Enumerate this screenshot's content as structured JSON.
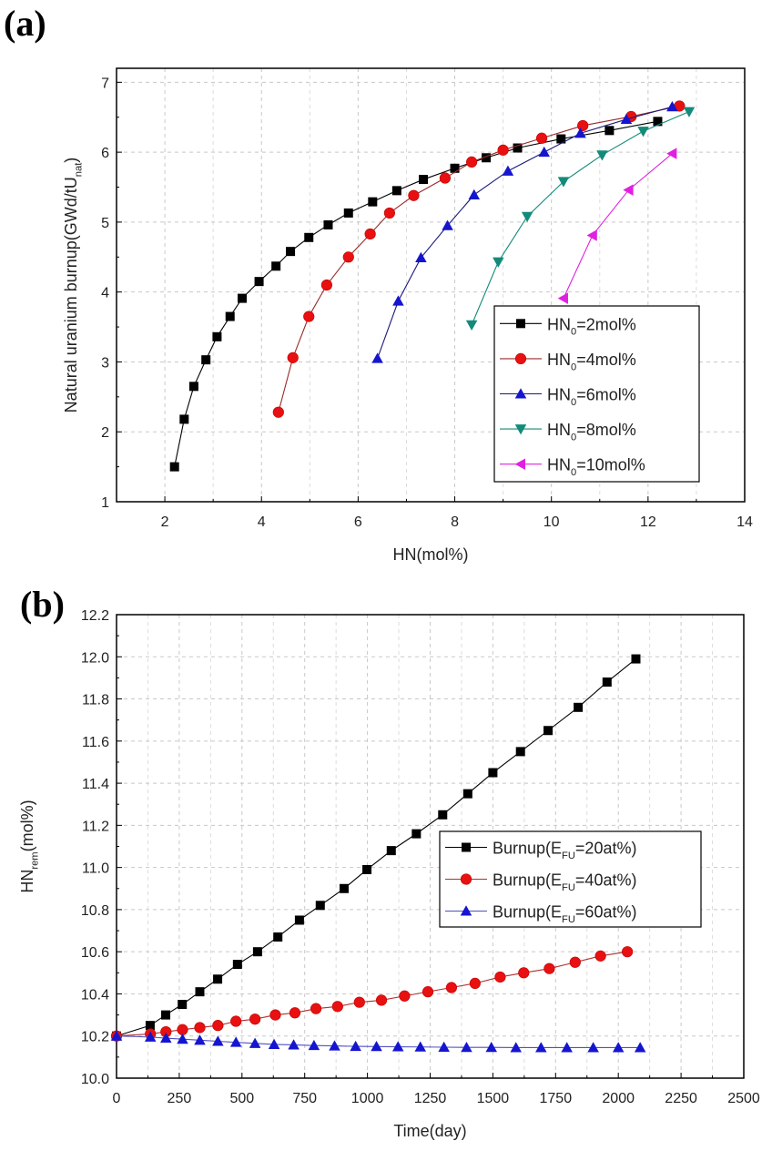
{
  "chart_data": [
    {
      "panel_label": "(a)",
      "type": "line",
      "xlabel": "HN(mol%)",
      "ylabel": "Natural uranium burnup(GWd/tU",
      "ylabel_sub": "nat",
      "ylabel_end": ")",
      "xlim": [
        1,
        14
      ],
      "ylim": [
        1,
        7.2
      ],
      "xticks": [
        2,
        4,
        6,
        8,
        10,
        12,
        14
      ],
      "yticks": [
        1,
        2,
        3,
        4,
        5,
        6,
        7
      ],
      "grid": true,
      "legend_position": "center-right",
      "series": [
        {
          "name_pre": "HN",
          "name_sub": "0",
          "name_post": "=2mol%",
          "marker": "square",
          "color": "#000000",
          "line_color": "#000000",
          "x": [
            2.2,
            2.4,
            2.6,
            2.85,
            3.08,
            3.35,
            3.6,
            3.95,
            4.3,
            4.6,
            4.98,
            5.38,
            5.8,
            6.3,
            6.8,
            7.35,
            8.0,
            8.65,
            9.3,
            10.2,
            11.2,
            12.2
          ],
          "y": [
            1.5,
            2.18,
            2.65,
            3.03,
            3.36,
            3.65,
            3.91,
            4.15,
            4.37,
            4.58,
            4.78,
            4.96,
            5.13,
            5.29,
            5.45,
            5.61,
            5.77,
            5.92,
            6.06,
            6.19,
            6.31,
            6.44
          ]
        },
        {
          "name_pre": "HN",
          "name_sub": "0",
          "name_post": "=4mol%",
          "marker": "circle",
          "color": "#e81010",
          "line_color": "#9a2a2a",
          "x": [
            4.35,
            4.65,
            4.98,
            5.35,
            5.8,
            6.25,
            6.65,
            7.15,
            7.8,
            8.35,
            9.0,
            9.8,
            10.65,
            11.65,
            12.65
          ],
          "y": [
            2.28,
            3.06,
            3.65,
            4.1,
            4.5,
            4.83,
            5.13,
            5.38,
            5.63,
            5.86,
            6.03,
            6.2,
            6.38,
            6.51,
            6.66
          ]
        },
        {
          "name_pre": "HN",
          "name_sub": "0",
          "name_post": "=6mol%",
          "marker": "triangle-up",
          "color": "#1515d0",
          "line_color": "#1a1a7a",
          "x": [
            6.4,
            6.83,
            7.3,
            7.85,
            8.4,
            9.1,
            9.85,
            10.6,
            11.55,
            12.5
          ],
          "y": [
            3.05,
            3.87,
            4.49,
            4.95,
            5.39,
            5.73,
            6.0,
            6.27,
            6.47,
            6.65
          ]
        },
        {
          "name_pre": "HN",
          "name_sub": "0",
          "name_post": "=8mol%",
          "marker": "triangle-down",
          "color": "#138a7a",
          "line_color": "#138a7a",
          "x": [
            8.35,
            8.9,
            9.5,
            10.25,
            11.05,
            11.9,
            12.85
          ],
          "y": [
            3.53,
            4.43,
            5.08,
            5.58,
            5.96,
            6.3,
            6.58
          ]
        },
        {
          "name_pre": "HN",
          "name_sub": "0",
          "name_post": "=10mol%",
          "marker": "triangle-left",
          "color": "#e020e0",
          "line_color": "#e020e0",
          "x": [
            10.25,
            10.85,
            11.6,
            12.5
          ],
          "y": [
            3.91,
            4.81,
            5.46,
            5.98
          ]
        }
      ]
    },
    {
      "panel_label": "(b)",
      "type": "line",
      "xlabel": "Time(day)",
      "ylabel": "HN",
      "ylabel_sub": "rem",
      "ylabel_end": "(mol%)",
      "xlim": [
        0,
        2500
      ],
      "ylim": [
        10.0,
        12.2
      ],
      "xticks": [
        0,
        250,
        500,
        750,
        1000,
        1250,
        1500,
        1750,
        2000,
        2250,
        2500
      ],
      "yticks": [
        "10.0",
        "10.2",
        "10.4",
        "10.6",
        "10.8",
        "11.0",
        "11.2",
        "11.4",
        "11.6",
        "11.8",
        "12.0",
        "12.2"
      ],
      "grid": true,
      "legend_position": "center-right",
      "series": [
        {
          "name_pre": "Burnup(E",
          "name_sub": "FU",
          "name_post": "=20at%)",
          "marker": "square",
          "color": "#000000",
          "line_color": "#000000",
          "x": [
            0,
            134,
            196,
            262,
            332,
            403,
            482,
            562,
            643,
            729,
            812,
            907,
            998,
            1095,
            1195,
            1300,
            1400,
            1500,
            1610,
            1720,
            1840,
            1955,
            2070
          ],
          "y": [
            10.2,
            10.25,
            10.3,
            10.35,
            10.41,
            10.47,
            10.54,
            10.6,
            10.67,
            10.75,
            10.82,
            10.9,
            10.99,
            11.08,
            11.16,
            11.25,
            11.35,
            11.45,
            11.55,
            11.65,
            11.76,
            11.88,
            11.99
          ]
        },
        {
          "name_pre": "Burnup(E",
          "name_sub": "FU",
          "name_post": "=40at%)",
          "marker": "circle",
          "color": "#e81010",
          "line_color": "#b03030",
          "x": [
            0,
            135,
            197,
            263,
            332,
            404,
            476,
            552,
            633,
            711,
            795,
            881,
            968,
            1056,
            1148,
            1241,
            1335,
            1429,
            1529,
            1623,
            1725,
            1828,
            1929,
            2036
          ],
          "y": [
            10.2,
            10.21,
            10.22,
            10.23,
            10.24,
            10.25,
            10.27,
            10.28,
            10.3,
            10.31,
            10.33,
            10.34,
            10.36,
            10.37,
            10.39,
            10.41,
            10.43,
            10.45,
            10.48,
            10.5,
            10.52,
            10.55,
            10.58,
            10.6
          ]
        },
        {
          "name_pre": "Burnup(E",
          "name_sub": "FU",
          "name_post": "=60at%)",
          "marker": "triangle-up",
          "color": "#1515d0",
          "line_color": "#5050c0",
          "x": [
            0,
            135,
            197,
            263,
            332,
            404,
            476,
            552,
            628,
            706,
            787,
            869,
            953,
            1036,
            1122,
            1211,
            1305,
            1395,
            1494,
            1592,
            1692,
            1795,
            1900,
            2000,
            2087
          ],
          "y": [
            10.2,
            10.195,
            10.19,
            10.185,
            10.18,
            10.175,
            10.17,
            10.165,
            10.16,
            10.158,
            10.155,
            10.153,
            10.151,
            10.15,
            10.149,
            10.148,
            10.147,
            10.146,
            10.146,
            10.145,
            10.145,
            10.145,
            10.145,
            10.145,
            10.145
          ]
        }
      ]
    }
  ]
}
